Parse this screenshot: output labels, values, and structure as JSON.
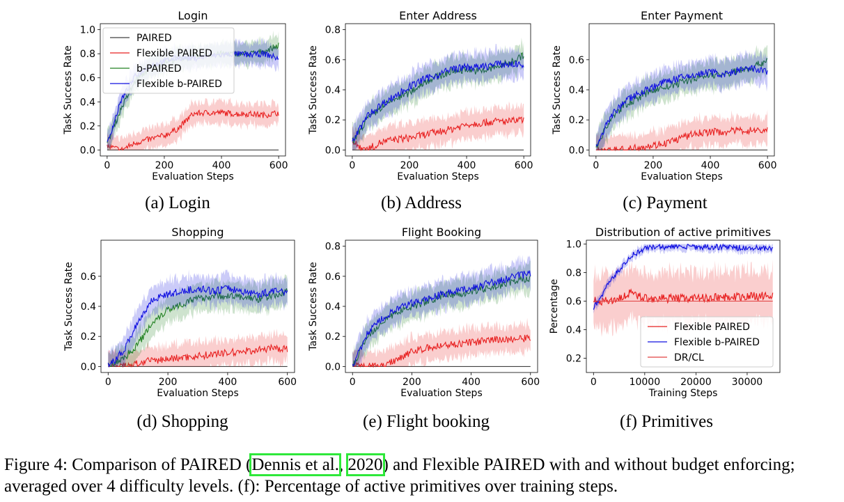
{
  "charts": [
    {
      "id": "a",
      "title": "Login",
      "ylabel": "Task Success Rate",
      "xlabel": "Evaluation Steps",
      "xlim": [
        0,
        600
      ],
      "xticks": [
        0,
        200,
        400,
        600
      ],
      "ylim": [
        0,
        1.0
      ],
      "yticks": [
        "0.0",
        "0.2",
        "0.4",
        "0.6",
        "0.8",
        "1.0"
      ],
      "subcaption": "(a) Login",
      "has_legend": true
    },
    {
      "id": "b",
      "title": "Enter Address",
      "ylabel": "Task Success Rate",
      "xlabel": "Evaluation Steps",
      "xlim": [
        0,
        600
      ],
      "xticks": [
        0,
        200,
        400,
        600
      ],
      "ylim": [
        0,
        0.8
      ],
      "yticks": [
        "0.0",
        "0.2",
        "0.4",
        "0.6",
        "0.8"
      ],
      "subcaption": "(b) Address"
    },
    {
      "id": "c",
      "title": "Enter Payment",
      "ylabel": "Task Success Rate",
      "xlabel": "Evaluation Steps",
      "xlim": [
        0,
        600
      ],
      "xticks": [
        0,
        200,
        400,
        600
      ],
      "ylim": [
        0,
        0.8
      ],
      "yticks": [
        "0.0",
        "0.2",
        "0.4",
        "0.6"
      ],
      "subcaption": "(c) Payment"
    },
    {
      "id": "d",
      "title": "Shopping",
      "ylabel": "Task Success Rate",
      "xlabel": "Evaluation Steps",
      "xlim": [
        0,
        600
      ],
      "xticks": [
        0,
        200,
        400,
        600
      ],
      "ylim": [
        0,
        0.8
      ],
      "yticks": [
        "0.0",
        "0.2",
        "0.4",
        "0.6"
      ],
      "subcaption": "(d) Shopping"
    },
    {
      "id": "e",
      "title": "Flight Booking",
      "ylabel": "Task Success Rate",
      "xlabel": "Evaluation Steps",
      "xlim": [
        0,
        600
      ],
      "xticks": [
        0,
        200,
        400,
        600
      ],
      "ylim": [
        0,
        0.8
      ],
      "yticks": [
        "0.0",
        "0.2",
        "0.4",
        "0.6",
        "0.8"
      ],
      "subcaption": "(e) Flight booking"
    },
    {
      "id": "f",
      "title": "Distribution of active primitives",
      "ylabel": "Percentage",
      "xlabel": "Training Steps",
      "xlim": [
        0,
        35000
      ],
      "xticks": [
        "0",
        "10000",
        "20000",
        "30000"
      ],
      "ylim": [
        0.1,
        1.0
      ],
      "yticks": [
        "0.2",
        "0.4",
        "0.6",
        "0.8",
        "1.0"
      ],
      "subcaption": "(f) Primitives",
      "has_legend": true
    }
  ],
  "legend_a": [
    "PAIRED",
    "Flexible PAIRED",
    "b-PAIRED",
    "Flexible b-PAIRED"
  ],
  "legend_f": [
    "Flexible PAIRED",
    "Flexible b-PAIRED",
    "DR/CL"
  ],
  "colors": {
    "PAIRED": "#404040",
    "Flexible PAIRED": "#e82020",
    "b-PAIRED": "#208020",
    "Flexible b-PAIRED": "#1010e0",
    "DR/CL": "#e04040"
  },
  "caption": {
    "prefix": "Figure 4:  Comparison of PAIRED (",
    "cite_author": "Dennis et al.",
    "cite_sep": ", ",
    "cite_year": "2020",
    "suffix": ") and Flexible PAIRED with and without budget enforcing; averaged over 4 difficulty levels. (f): Percentage of active primitives over training steps."
  },
  "chart_data": [
    {
      "type": "line",
      "title": "Login",
      "x": [
        0,
        50,
        100,
        150,
        200,
        250,
        300,
        350,
        400,
        450,
        500,
        550,
        600
      ],
      "series": [
        {
          "name": "PAIRED",
          "values": [
            0.0,
            0.0,
            0.0,
            0.0,
            0.0,
            0.0,
            0.0,
            0.0,
            0.0,
            0.0,
            0.0,
            0.0,
            0.0
          ]
        },
        {
          "name": "Flexible PAIRED",
          "values": [
            0.03,
            0.0,
            0.06,
            0.09,
            0.12,
            0.18,
            0.3,
            0.31,
            0.31,
            0.3,
            0.3,
            0.29,
            0.31
          ]
        },
        {
          "name": "b-PAIRED",
          "values": [
            0.05,
            0.35,
            0.58,
            0.68,
            0.73,
            0.76,
            0.77,
            0.79,
            0.8,
            0.8,
            0.8,
            0.82,
            0.87
          ]
        },
        {
          "name": "Flexible b-PAIRED",
          "values": [
            0.05,
            0.42,
            0.62,
            0.7,
            0.74,
            0.77,
            0.76,
            0.78,
            0.79,
            0.8,
            0.79,
            0.8,
            0.76
          ]
        }
      ]
    },
    {
      "type": "line",
      "title": "Enter Address",
      "x": [
        0,
        50,
        100,
        150,
        200,
        250,
        300,
        350,
        400,
        450,
        500,
        550,
        600
      ],
      "series": [
        {
          "name": "PAIRED",
          "values": [
            0.0,
            0.0,
            0.0,
            0.0,
            0.0,
            0.0,
            0.0,
            0.0,
            0.0,
            0.0,
            0.0,
            0.0,
            0.0
          ]
        },
        {
          "name": "Flexible PAIRED",
          "values": [
            0.05,
            0.0,
            0.05,
            0.07,
            0.08,
            0.1,
            0.12,
            0.14,
            0.17,
            0.18,
            0.19,
            0.19,
            0.2
          ]
        },
        {
          "name": "b-PAIRED",
          "values": [
            0.05,
            0.2,
            0.28,
            0.34,
            0.38,
            0.45,
            0.49,
            0.52,
            0.54,
            0.52,
            0.55,
            0.58,
            0.63
          ]
        },
        {
          "name": "Flexible b-PAIRED",
          "values": [
            0.05,
            0.22,
            0.3,
            0.36,
            0.42,
            0.47,
            0.5,
            0.54,
            0.55,
            0.55,
            0.57,
            0.57,
            0.57
          ]
        }
      ]
    },
    {
      "type": "line",
      "title": "Enter Payment",
      "x": [
        0,
        50,
        100,
        150,
        200,
        250,
        300,
        350,
        400,
        450,
        500,
        550,
        600
      ],
      "series": [
        {
          "name": "PAIRED",
          "values": [
            0.0,
            0.0,
            0.0,
            0.0,
            0.0,
            0.0,
            0.0,
            0.0,
            0.0,
            0.0,
            0.0,
            0.0,
            0.0
          ]
        },
        {
          "name": "Flexible PAIRED",
          "values": [
            0.0,
            0.0,
            0.0,
            0.02,
            0.03,
            0.05,
            0.08,
            0.11,
            0.12,
            0.12,
            0.13,
            0.13,
            0.13
          ]
        },
        {
          "name": "b-PAIRED",
          "values": [
            0.02,
            0.2,
            0.3,
            0.35,
            0.4,
            0.42,
            0.45,
            0.48,
            0.5,
            0.5,
            0.53,
            0.55,
            0.6
          ]
        },
        {
          "name": "Flexible b-PAIRED",
          "values": [
            0.02,
            0.22,
            0.32,
            0.38,
            0.42,
            0.46,
            0.48,
            0.5,
            0.52,
            0.5,
            0.53,
            0.54,
            0.52
          ]
        }
      ]
    },
    {
      "type": "line",
      "title": "Shopping",
      "x": [
        0,
        50,
        100,
        150,
        200,
        250,
        300,
        350,
        400,
        450,
        500,
        550,
        600
      ],
      "series": [
        {
          "name": "PAIRED",
          "values": [
            0.0,
            0.0,
            0.0,
            0.0,
            0.0,
            0.0,
            0.0,
            0.0,
            0.0,
            0.0,
            0.0,
            0.0,
            0.0
          ]
        },
        {
          "name": "Flexible PAIRED",
          "values": [
            0.0,
            0.0,
            0.02,
            0.04,
            0.05,
            0.06,
            0.07,
            0.08,
            0.09,
            0.1,
            0.11,
            0.12,
            0.12
          ]
        },
        {
          "name": "b-PAIRED",
          "values": [
            0.0,
            0.05,
            0.15,
            0.3,
            0.38,
            0.42,
            0.45,
            0.47,
            0.47,
            0.46,
            0.45,
            0.47,
            0.5
          ]
        },
        {
          "name": "Flexible b-PAIRED",
          "values": [
            0.0,
            0.1,
            0.3,
            0.45,
            0.48,
            0.5,
            0.52,
            0.5,
            0.52,
            0.5,
            0.48,
            0.5,
            0.5
          ]
        }
      ]
    },
    {
      "type": "line",
      "title": "Flight Booking",
      "x": [
        0,
        50,
        100,
        150,
        200,
        250,
        300,
        350,
        400,
        450,
        500,
        550,
        600
      ],
      "series": [
        {
          "name": "PAIRED",
          "values": [
            0.0,
            0.0,
            0.0,
            0.0,
            0.0,
            0.0,
            0.0,
            0.0,
            0.0,
            0.0,
            0.0,
            0.0,
            0.0
          ]
        },
        {
          "name": "Flexible PAIRED",
          "values": [
            0.0,
            0.0,
            0.0,
            0.05,
            0.1,
            0.12,
            0.14,
            0.15,
            0.16,
            0.17,
            0.18,
            0.18,
            0.19
          ]
        },
        {
          "name": "b-PAIRED",
          "values": [
            0.0,
            0.2,
            0.3,
            0.36,
            0.4,
            0.43,
            0.47,
            0.48,
            0.5,
            0.52,
            0.54,
            0.57,
            0.59
          ]
        },
        {
          "name": "Flexible b-PAIRED",
          "values": [
            0.0,
            0.22,
            0.32,
            0.38,
            0.42,
            0.45,
            0.48,
            0.5,
            0.52,
            0.55,
            0.57,
            0.6,
            0.62
          ]
        }
      ]
    },
    {
      "type": "line",
      "title": "Distribution of active primitives",
      "x": [
        0,
        2500,
        5000,
        7500,
        10000,
        12500,
        15000,
        20000,
        25000,
        30000,
        35000
      ],
      "series": [
        {
          "name": "Flexible PAIRED",
          "values": [
            0.6,
            0.6,
            0.62,
            0.66,
            0.62,
            0.62,
            0.62,
            0.62,
            0.63,
            0.63,
            0.64
          ]
        },
        {
          "name": "Flexible b-PAIRED",
          "values": [
            0.55,
            0.7,
            0.82,
            0.92,
            0.97,
            0.98,
            0.98,
            0.98,
            0.98,
            0.97,
            0.97
          ]
        },
        {
          "name": "DR/CL",
          "values": [
            0.6,
            0.6,
            0.6,
            0.6,
            0.6,
            0.6,
            0.6,
            0.6,
            0.6,
            0.6,
            0.6
          ]
        }
      ]
    }
  ]
}
